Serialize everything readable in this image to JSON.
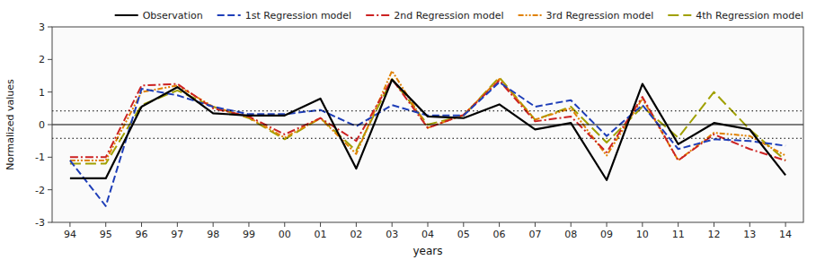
{
  "chart_data": {
    "type": "line",
    "xlabel": "years",
    "ylabel": "Normalized values",
    "categories": [
      "94",
      "95",
      "96",
      "97",
      "98",
      "99",
      "00",
      "01",
      "02",
      "03",
      "04",
      "05",
      "06",
      "07",
      "08",
      "09",
      "10",
      "11",
      "12",
      "13",
      "14"
    ],
    "series": [
      {
        "name": "Observation",
        "color": "#000000",
        "line_style": "solid",
        "values": [
          -1.65,
          -1.65,
          0.55,
          1.15,
          0.35,
          0.28,
          0.28,
          0.8,
          -1.35,
          1.38,
          0.25,
          0.2,
          0.62,
          -0.15,
          0.05,
          -1.7,
          1.25,
          -0.6,
          0.05,
          -0.15,
          -1.55
        ]
      },
      {
        "name": "1st Regression model",
        "color": "#1E3EB8",
        "line_style": "dashed",
        "values": [
          -1.1,
          -2.5,
          1.1,
          0.9,
          0.55,
          0.32,
          0.32,
          0.45,
          -0.05,
          0.6,
          0.28,
          0.28,
          1.3,
          0.55,
          0.75,
          -0.35,
          0.6,
          -0.75,
          -0.45,
          -0.5,
          -0.65
        ]
      },
      {
        "name": "2nd Regression model",
        "color": "#CC2222",
        "line_style": "dashdot",
        "values": [
          -1.0,
          -1.0,
          1.2,
          1.25,
          0.5,
          0.25,
          -0.3,
          0.2,
          -0.5,
          1.4,
          -0.1,
          0.3,
          1.35,
          0.1,
          0.25,
          -0.85,
          0.85,
          -1.1,
          -0.3,
          -0.75,
          -1.1
        ]
      },
      {
        "name": "3rd Regression model",
        "color": "#E08000",
        "line_style": "dashdotdot",
        "values": [
          -1.1,
          -1.1,
          1.0,
          1.2,
          0.55,
          0.22,
          -0.4,
          0.2,
          -0.9,
          1.65,
          -0.1,
          0.3,
          1.4,
          0.15,
          0.5,
          -0.95,
          0.8,
          -1.1,
          -0.25,
          -0.35,
          -0.95
        ]
      },
      {
        "name": "4th Regression model",
        "color": "#A0A000",
        "line_style": "longdashed",
        "values": [
          -1.2,
          -1.2,
          0.6,
          1.05,
          0.55,
          0.2,
          -0.45,
          0.2,
          -0.8,
          1.4,
          0.0,
          0.28,
          1.45,
          0.15,
          0.55,
          -0.55,
          0.55,
          -0.4,
          1.0,
          -0.15,
          -1.1
        ]
      }
    ],
    "hlines": [
      {
        "value": 0.0,
        "line_style": "solid"
      },
      {
        "value": 0.42,
        "line_style": "dotted"
      },
      {
        "value": -0.42,
        "line_style": "dotted"
      }
    ],
    "ylim": [
      -3,
      3
    ],
    "yticks": [
      -3,
      -2,
      -1,
      0,
      1,
      2,
      3
    ],
    "grid": false,
    "legend": "upper right"
  }
}
